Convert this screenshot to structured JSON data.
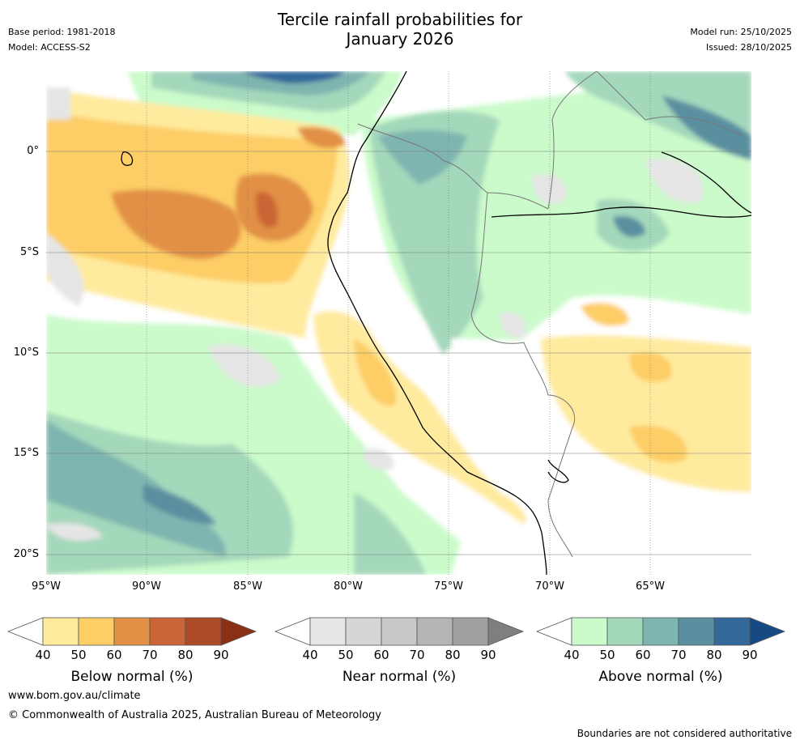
{
  "header": {
    "title_line1": "Tercile rainfall probabilities for",
    "title_line2": "January 2026",
    "base_period": "Base period: 1981-2018",
    "model": "Model: ACCESS-S2",
    "model_run": "Model run: 25/10/2025",
    "issued": "Issued: 28/10/2025"
  },
  "map": {
    "lat_labels": [
      "0°",
      "5°S",
      "10°S",
      "15°S",
      "20°S"
    ],
    "lon_labels": [
      "95°W",
      "90°W",
      "85°W",
      "80°W",
      "75°W",
      "70°W",
      "65°W"
    ],
    "lat_range": [
      -21,
      4
    ],
    "lon_range": [
      -95,
      -60
    ],
    "lat_ticks": [
      0,
      -5,
      -10,
      -15,
      -20
    ],
    "lon_ticks": [
      -95,
      -90,
      -85,
      -80,
      -75,
      -70,
      -65
    ]
  },
  "colorbars": [
    {
      "title": "Below normal (%)",
      "ticks": [
        "40",
        "50",
        "60",
        "70",
        "80",
        "90"
      ],
      "colors": [
        "#ffeb9e",
        "#fdcd66",
        "#e19045",
        "#cc6536",
        "#ad4a27",
        "#8a3015"
      ]
    },
    {
      "title": "Near normal (%)",
      "ticks": [
        "40",
        "50",
        "60",
        "70",
        "80",
        "90"
      ],
      "colors": [
        "#e5e5e5",
        "#d6d6d6",
        "#c8c8c8",
        "#b5b5b5",
        "#a0a0a0",
        "#7f7f7f"
      ]
    },
    {
      "title": "Above normal (%)",
      "ticks": [
        "40",
        "50",
        "60",
        "70",
        "80",
        "90"
      ],
      "colors": [
        "#cbfbcb",
        "#a4d8bb",
        "#7fb5b0",
        "#5a8fa0",
        "#33689a",
        "#174a82"
      ]
    }
  ],
  "footer": {
    "url": "www.bom.gov.au/climate",
    "copyright": "© Commonwealth of Australia 2025, Australian Bureau of Meteorology",
    "disclaimer": "Boundaries are not considered authoritative"
  }
}
